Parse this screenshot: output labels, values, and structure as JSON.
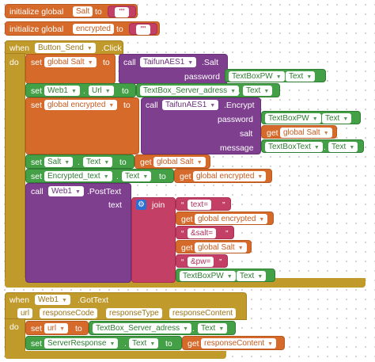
{
  "globals": [
    {
      "keyword": "initialize global",
      "name": "Salt",
      "to": "to",
      "value": "\"\""
    },
    {
      "keyword": "initialize global",
      "name": "encrypted",
      "to": "to",
      "value": "\"\""
    }
  ],
  "event1": {
    "when": "when",
    "component": "Button_Send",
    "event": ".Click",
    "do": "do",
    "set_salt": {
      "set": "set",
      "var": "global Salt",
      "to": "to",
      "call": "call",
      "comp": "TaifunAES1",
      "method": ".Salt",
      "param": "password",
      "arg_comp": "TextBoxPW",
      "arg_prop": "Text"
    },
    "set_url": {
      "set": "set",
      "comp": "Web1",
      "prop": "Url",
      "to": "to",
      "arg_comp": "TextBox_Server_adress",
      "arg_prop": "Text"
    },
    "set_encrypted": {
      "set": "set",
      "var": "global encrypted",
      "to": "to",
      "call": "call",
      "comp": "TaifunAES1",
      "method": ".Encrypt",
      "p1": "password",
      "p1_comp": "TextBoxPW",
      "p1_prop": "Text",
      "p2": "salt",
      "p2_get": "get",
      "p2_var": "global Salt",
      "p3": "message",
      "p3_comp": "TextBoxText",
      "p3_prop": "Text"
    },
    "set_salt_text": {
      "set": "set",
      "comp": "Salt",
      "prop": "Text",
      "to": "to",
      "get": "get",
      "var": "global Salt"
    },
    "set_enc_text": {
      "set": "set",
      "comp": "Encrypted_text",
      "prop": "Text",
      "to": "to",
      "get": "get",
      "var": "global encrypted"
    },
    "post": {
      "call": "call",
      "comp": "Web1",
      "method": ".PostText",
      "param": "text",
      "join": "join",
      "items": [
        {
          "kind": "string",
          "text": "text="
        },
        {
          "kind": "get",
          "get": "get",
          "var": "global encrypted"
        },
        {
          "kind": "string",
          "text": "&salt="
        },
        {
          "kind": "get",
          "get": "get",
          "var": "global Salt"
        },
        {
          "kind": "string",
          "text": "&pw="
        },
        {
          "kind": "prop",
          "comp": "TextBoxPW",
          "prop": "Text"
        }
      ]
    }
  },
  "event2": {
    "when": "when",
    "component": "Web1",
    "event": ".GotText",
    "params": [
      "url",
      "responseCode",
      "responseType",
      "responseContent"
    ],
    "do": "do",
    "set_url": {
      "set": "set",
      "var": "url",
      "to": "to",
      "arg_comp": "TextBox_Server_adress",
      "arg_prop": "Text"
    },
    "set_resp": {
      "set": "set",
      "comp": "ServerResponse",
      "prop": "Text",
      "to": "to",
      "get": "get",
      "var": "responseContent"
    }
  },
  "colors": {
    "variable": "#d66a2b",
    "text": "#c43f66",
    "component": "#43a047",
    "procedure": "#7e3f8f",
    "event": "#c19a2c"
  },
  "icons": {
    "dropdown": "dropdown-triangle-icon",
    "mutator": "gear-icon",
    "quote": "quote-icon"
  }
}
